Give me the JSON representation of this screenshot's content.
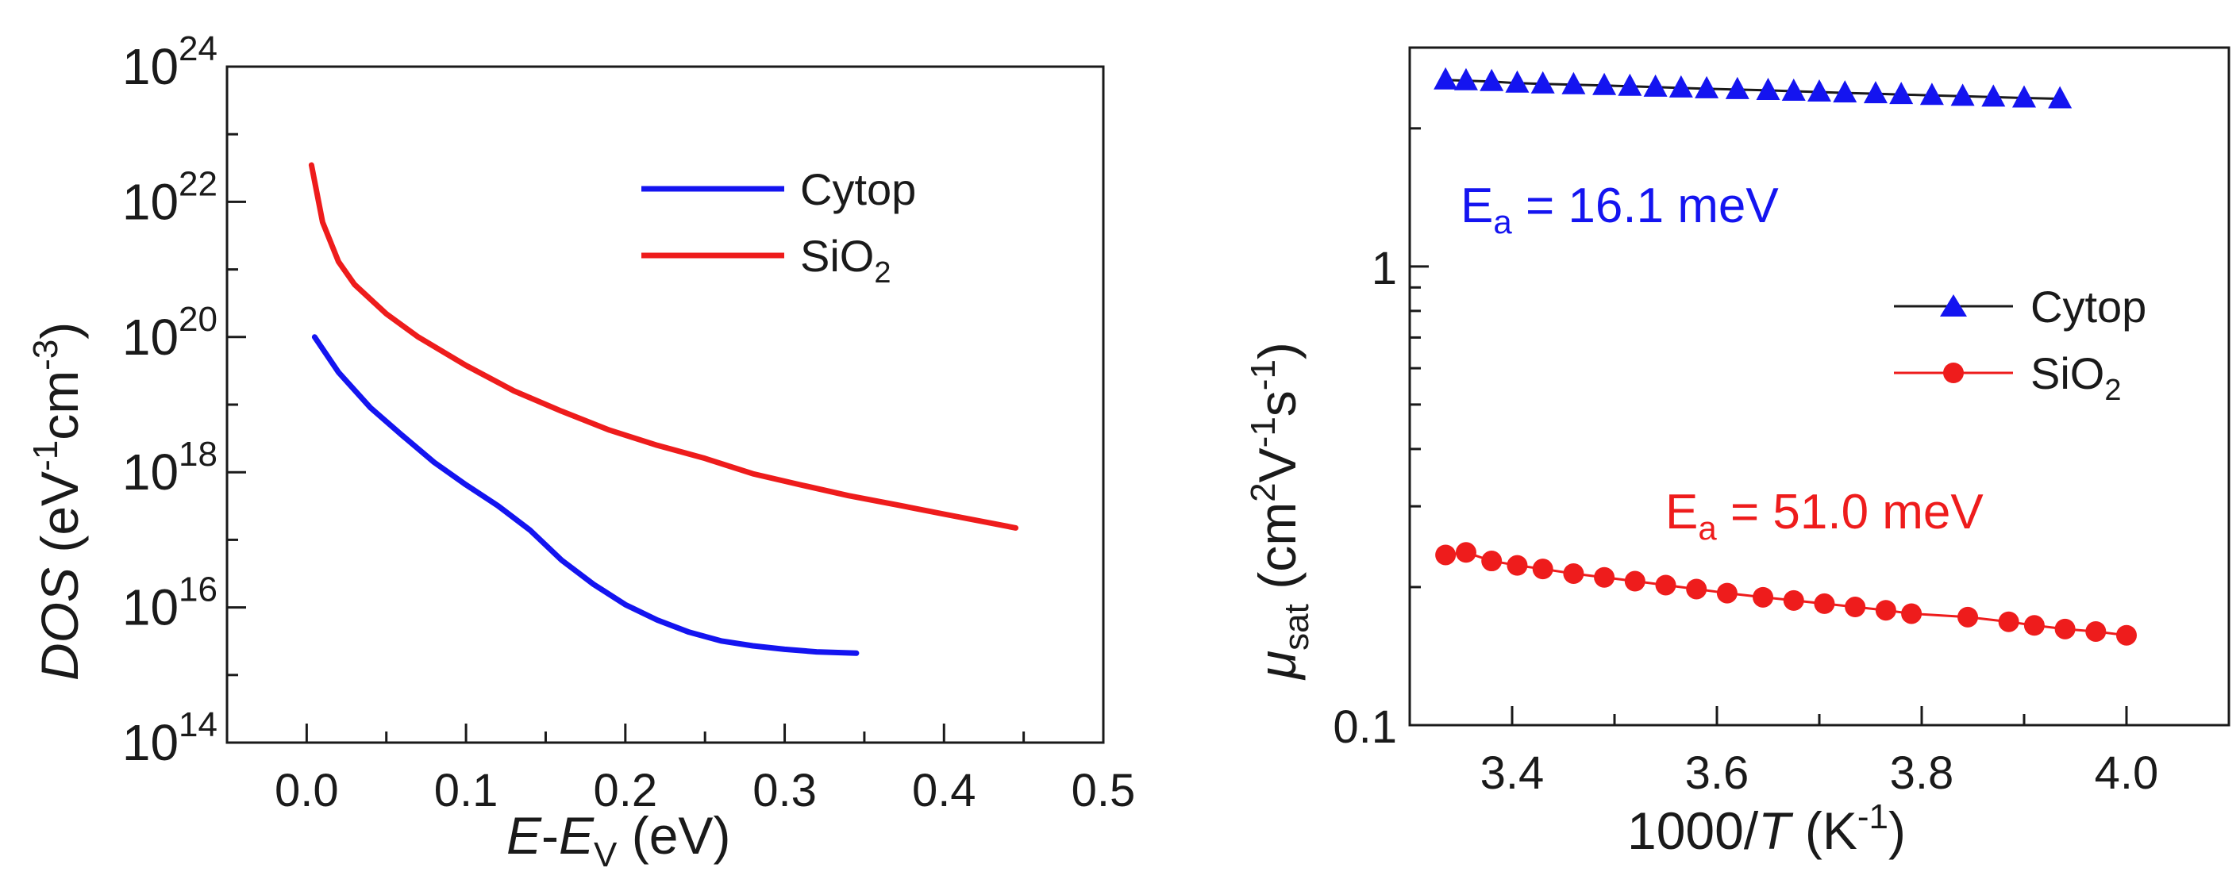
{
  "colors": {
    "cytop": "#1414f0",
    "sio2": "#ee1c1c",
    "axis": "#1a1a1a",
    "background": "#ffffff"
  },
  "chart_data": [
    {
      "type": "line",
      "yscale": "log",
      "xlabel": {
        "italic": "E",
        "dash": "-",
        "italic2": "E",
        "sub": "V",
        "unit": " (eV)"
      },
      "ylabel": {
        "italic": "DOS",
        "rest": " (eV",
        "exp1": "-1",
        "mid": "cm",
        "exp2": "-3",
        "close": ")"
      },
      "xlim": [
        -0.05,
        0.5
      ],
      "ylim": [
        100000000000000.0,
        1e+24
      ],
      "xticks": [
        0.0,
        0.1,
        0.2,
        0.3,
        0.4,
        0.5
      ],
      "xtick_labels": [
        "0.0",
        "0.1",
        "0.2",
        "0.3",
        "0.4",
        "0.5"
      ],
      "yticks": [
        14,
        16,
        18,
        20,
        22,
        24
      ],
      "ytick_labels": [
        {
          "base": "10",
          "exp": "14"
        },
        {
          "base": "10",
          "exp": "16"
        },
        {
          "base": "10",
          "exp": "18"
        },
        {
          "base": "10",
          "exp": "20"
        },
        {
          "base": "10",
          "exp": "22"
        },
        {
          "base": "10",
          "exp": "24"
        }
      ],
      "legend": {
        "position": "top-right",
        "entries": [
          {
            "name": "Cytop"
          },
          {
            "name": "SiO",
            "sub": "2"
          }
        ]
      },
      "series": [
        {
          "name": "Cytop",
          "color": "#1414f0",
          "x": [
            0.005,
            0.02,
            0.04,
            0.06,
            0.08,
            0.1,
            0.12,
            0.14,
            0.16,
            0.18,
            0.2,
            0.22,
            0.24,
            0.26,
            0.28,
            0.3,
            0.32,
            0.345
          ],
          "y": [
            1e+20,
            3e+19,
            9e+18,
            3.5e+18,
            1.4e+18,
            6.5e+17,
            3.2e+17,
            1.4e+17,
            5e+16,
            2.2e+16,
            1.1e+16,
            6500000000000000.0,
            4300000000000000.0,
            3200000000000000.0,
            2700000000000000.0,
            2400000000000000.0,
            2200000000000000.0,
            2100000000000000.0
          ]
        },
        {
          "name": "SiO2",
          "color": "#ee1c1c",
          "x": [
            0.003,
            0.01,
            0.02,
            0.03,
            0.05,
            0.07,
            0.1,
            0.13,
            0.16,
            0.19,
            0.22,
            0.25,
            0.28,
            0.31,
            0.34,
            0.37,
            0.4,
            0.445
          ],
          "y": [
            3.5e+22,
            5e+21,
            1.3e+21,
            6e+20,
            2.2e+20,
            1e+20,
            3.8e+19,
            1.6e+19,
            8e+18,
            4.2e+18,
            2.5e+18,
            1.6e+18,
            9.5e+17,
            6.5e+17,
            4.5e+17,
            3.3e+17,
            2.4e+17,
            1.5e+17
          ]
        }
      ]
    },
    {
      "type": "line",
      "yscale": "log",
      "xlabel": {
        "pre": "1000/",
        "italic": "T",
        "rest": " (K",
        "exp": "-1",
        "close": ")"
      },
      "ylabel": {
        "mu": "μ",
        "sub": "sat",
        "rest": " (cm",
        "exp1": "2",
        "mid1": "V",
        "exp2": "-1",
        "mid2": "s",
        "exp3": "-1",
        "close": ")"
      },
      "xlim": [
        3.3,
        4.1
      ],
      "ylim": [
        0.1,
        3.0
      ],
      "xticks": [
        3.4,
        3.6,
        3.8,
        4.0
      ],
      "xtick_labels": [
        "3.4",
        "3.6",
        "3.8",
        "4.0"
      ],
      "yticks": [
        0.1,
        1
      ],
      "ytick_labels": [
        "0.1",
        "1"
      ],
      "legend": {
        "position": "center-right",
        "entries": [
          {
            "name": "Cytop"
          },
          {
            "name": "SiO",
            "sub": "2"
          }
        ]
      },
      "annotations": [
        {
          "text": "E",
          "sub": "a",
          "rest": " = 16.1 meV",
          "series": "Cytop"
        },
        {
          "text": "E",
          "sub": "a",
          "rest": " = 51.0 meV",
          "series": "SiO2"
        }
      ],
      "series": [
        {
          "name": "Cytop",
          "marker": "triangle",
          "color": "#1414f0",
          "x": [
            3.335,
            3.355,
            3.38,
            3.405,
            3.43,
            3.46,
            3.49,
            3.515,
            3.54,
            3.565,
            3.59,
            3.62,
            3.65,
            3.675,
            3.7,
            3.725,
            3.755,
            3.78,
            3.81,
            3.84,
            3.87,
            3.9,
            3.935
          ],
          "y": [
            2.55,
            2.54,
            2.53,
            2.51,
            2.5,
            2.49,
            2.48,
            2.47,
            2.46,
            2.45,
            2.44,
            2.43,
            2.42,
            2.41,
            2.4,
            2.39,
            2.38,
            2.37,
            2.36,
            2.35,
            2.34,
            2.33,
            2.32
          ]
        },
        {
          "name": "SiO2",
          "marker": "circle",
          "color": "#ee1c1c",
          "x": [
            3.335,
            3.355,
            3.38,
            3.405,
            3.43,
            3.46,
            3.49,
            3.52,
            3.55,
            3.58,
            3.61,
            3.645,
            3.675,
            3.705,
            3.735,
            3.765,
            3.79,
            3.845,
            3.885,
            3.91,
            3.94,
            3.97,
            4.0
          ],
          "y": [
            0.235,
            0.238,
            0.228,
            0.223,
            0.219,
            0.214,
            0.21,
            0.206,
            0.202,
            0.198,
            0.194,
            0.19,
            0.187,
            0.184,
            0.181,
            0.178,
            0.175,
            0.172,
            0.168,
            0.165,
            0.162,
            0.16,
            0.157
          ]
        }
      ]
    }
  ]
}
